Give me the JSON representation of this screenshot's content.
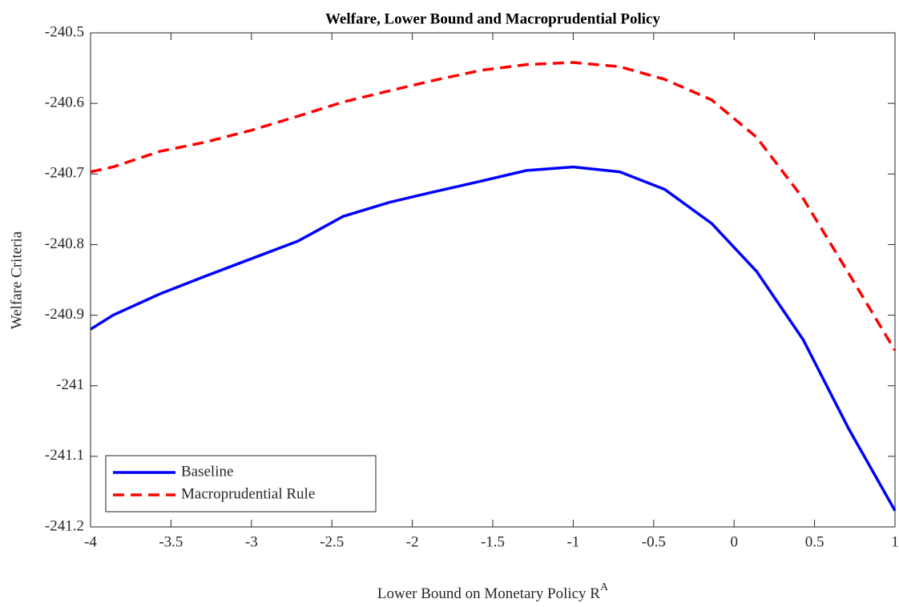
{
  "chart_data": {
    "type": "line",
    "title": "Welfare, Lower Bound and Macroprudential Policy",
    "xlabel": "Lower Bound on Monetary Policy R",
    "xlabel_superscript": "A",
    "ylabel": "Welfare Criteria",
    "x": [
      -4,
      -3.86,
      -3.57,
      -3.29,
      -3,
      -2.71,
      -2.43,
      -2.14,
      -1.86,
      -1.57,
      -1.29,
      -1,
      -0.71,
      -0.43,
      -0.14,
      0.14,
      0.43,
      0.71,
      1
    ],
    "series": [
      {
        "name": "Baseline",
        "color": "#0000ff",
        "dash": "solid",
        "values": [
          -240.92,
          -240.9,
          -240.87,
          -240.845,
          -240.82,
          -240.795,
          -240.76,
          -240.74,
          -240.725,
          -240.71,
          -240.695,
          -240.69,
          -240.697,
          -240.722,
          -240.77,
          -240.838,
          -240.935,
          -241.06,
          -241.177
        ]
      },
      {
        "name": "Macroprudential Rule",
        "color": "#ff0000",
        "dash": "dashed",
        "values": [
          -240.697,
          -240.69,
          -240.668,
          -240.655,
          -240.638,
          -240.618,
          -240.598,
          -240.582,
          -240.567,
          -240.553,
          -240.545,
          -240.542,
          -240.548,
          -240.566,
          -240.595,
          -240.648,
          -240.735,
          -240.84,
          -240.95
        ]
      }
    ],
    "xlim": [
      -4,
      1
    ],
    "xticks": [
      -4,
      -3.5,
      -3,
      -2.5,
      -2,
      -1.5,
      -1,
      -0.5,
      0,
      0.5,
      1
    ],
    "ylim": [
      -241.2,
      -240.5
    ],
    "yticks": [
      -241.2,
      -241.1,
      -241,
      -240.9,
      -240.8,
      -240.7,
      -240.6,
      -240.5
    ],
    "grid": false,
    "legend": "lower left"
  }
}
